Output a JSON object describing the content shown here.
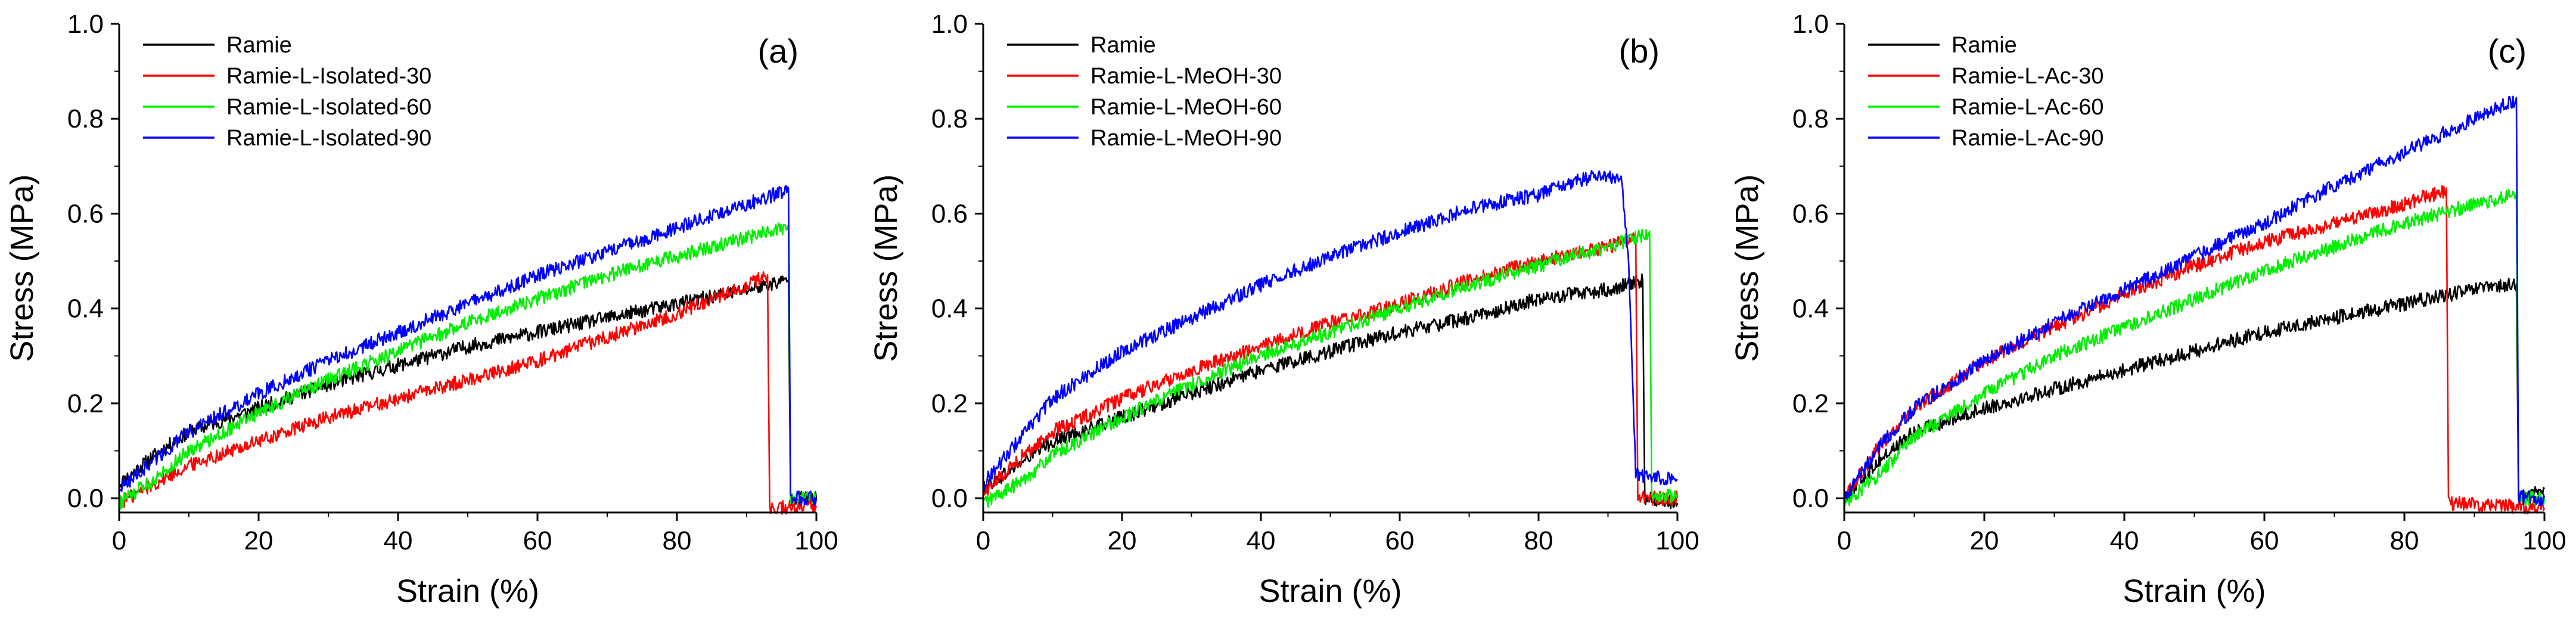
{
  "chart_data": [
    {
      "type": "line",
      "panel_label": "(a)",
      "xlabel": "Strain (%)",
      "ylabel": "Stress (MPa)",
      "xlim": [
        0,
        100
      ],
      "ylim": [
        -0.03,
        1.0
      ],
      "xticks": [
        "0",
        "20",
        "40",
        "60",
        "80",
        "100"
      ],
      "yticks": [
        "0.0",
        "0.2",
        "0.4",
        "0.6",
        "0.8",
        "1.0"
      ],
      "legend_position": "top-left",
      "series": [
        {
          "name": "Ramie",
          "color": "#000000",
          "points": [
            [
              0,
              0.03
            ],
            [
              5,
              0.09
            ],
            [
              10,
              0.14
            ],
            [
              20,
              0.19
            ],
            [
              30,
              0.24
            ],
            [
              40,
              0.28
            ],
            [
              50,
              0.32
            ],
            [
              60,
              0.35
            ],
            [
              70,
              0.38
            ],
            [
              80,
              0.41
            ],
            [
              90,
              0.44
            ],
            [
              96,
              0.46
            ],
            [
              96.3,
              0.0
            ],
            [
              100,
              0.0
            ]
          ]
        },
        {
          "name": "Ramie-L-Isolated-30",
          "color": "#ff0000",
          "points": [
            [
              0,
              -0.01
            ],
            [
              5,
              0.03
            ],
            [
              10,
              0.07
            ],
            [
              20,
              0.12
            ],
            [
              30,
              0.17
            ],
            [
              40,
              0.21
            ],
            [
              50,
              0.25
            ],
            [
              60,
              0.29
            ],
            [
              70,
              0.34
            ],
            [
              80,
              0.39
            ],
            [
              90,
              0.45
            ],
            [
              93,
              0.47
            ],
            [
              93.3,
              -0.02
            ],
            [
              100,
              -0.02
            ]
          ]
        },
        {
          "name": "Ramie-L-Isolated-60",
          "color": "#00ee00",
          "points": [
            [
              0,
              -0.01
            ],
            [
              5,
              0.04
            ],
            [
              10,
              0.1
            ],
            [
              20,
              0.18
            ],
            [
              30,
              0.25
            ],
            [
              40,
              0.31
            ],
            [
              50,
              0.37
            ],
            [
              60,
              0.42
            ],
            [
              70,
              0.47
            ],
            [
              80,
              0.51
            ],
            [
              90,
              0.55
            ],
            [
              96,
              0.57
            ],
            [
              96.3,
              0.0
            ],
            [
              100,
              0.0
            ]
          ]
        },
        {
          "name": "Ramie-L-Isolated-90",
          "color": "#0000ff",
          "points": [
            [
              0,
              0.02
            ],
            [
              5,
              0.08
            ],
            [
              10,
              0.14
            ],
            [
              20,
              0.22
            ],
            [
              30,
              0.29
            ],
            [
              40,
              0.35
            ],
            [
              50,
              0.41
            ],
            [
              60,
              0.47
            ],
            [
              70,
              0.52
            ],
            [
              80,
              0.57
            ],
            [
              90,
              0.62
            ],
            [
              96,
              0.65
            ],
            [
              96.3,
              0.0
            ],
            [
              100,
              0.0
            ]
          ]
        }
      ]
    },
    {
      "type": "line",
      "panel_label": "(b)",
      "xlabel": "Strain (%)",
      "ylabel": "Stress (MPa)",
      "xlim": [
        0,
        100
      ],
      "ylim": [
        -0.03,
        1.0
      ],
      "xticks": [
        "0",
        "20",
        "40",
        "60",
        "80",
        "100"
      ],
      "yticks": [
        "0.0",
        "0.2",
        "0.4",
        "0.6",
        "0.8",
        "1.0"
      ],
      "legend_position": "top-left",
      "series": [
        {
          "name": "Ramie",
          "color": "#000000",
          "points": [
            [
              0,
              0.02
            ],
            [
              5,
              0.07
            ],
            [
              10,
              0.12
            ],
            [
              20,
              0.17
            ],
            [
              30,
              0.22
            ],
            [
              40,
              0.27
            ],
            [
              50,
              0.31
            ],
            [
              60,
              0.35
            ],
            [
              70,
              0.38
            ],
            [
              80,
              0.42
            ],
            [
              90,
              0.44
            ],
            [
              95,
              0.46
            ],
            [
              95.3,
              0.0
            ],
            [
              100,
              -0.01
            ]
          ]
        },
        {
          "name": "Ramie-L-MeOH-30",
          "color": "#ff0000",
          "points": [
            [
              0,
              0.01
            ],
            [
              5,
              0.08
            ],
            [
              10,
              0.14
            ],
            [
              20,
              0.21
            ],
            [
              30,
              0.27
            ],
            [
              40,
              0.32
            ],
            [
              50,
              0.37
            ],
            [
              60,
              0.41
            ],
            [
              70,
              0.46
            ],
            [
              80,
              0.5
            ],
            [
              90,
              0.53
            ],
            [
              94,
              0.55
            ],
            [
              94.3,
              0.0
            ],
            [
              100,
              0.0
            ]
          ]
        },
        {
          "name": "Ramie-L-MeOH-60",
          "color": "#00ee00",
          "points": [
            [
              0,
              -0.01
            ],
            [
              5,
              0.03
            ],
            [
              10,
              0.09
            ],
            [
              20,
              0.17
            ],
            [
              30,
              0.24
            ],
            [
              40,
              0.3
            ],
            [
              50,
              0.35
            ],
            [
              60,
              0.4
            ],
            [
              70,
              0.45
            ],
            [
              80,
              0.49
            ],
            [
              90,
              0.53
            ],
            [
              96,
              0.56
            ],
            [
              96.3,
              0.01
            ],
            [
              100,
              0.0
            ]
          ]
        },
        {
          "name": "Ramie-L-MeOH-90",
          "color": "#0000ff",
          "points": [
            [
              0,
              0.03
            ],
            [
              5,
              0.12
            ],
            [
              10,
              0.21
            ],
            [
              20,
              0.31
            ],
            [
              30,
              0.38
            ],
            [
              40,
              0.45
            ],
            [
              50,
              0.51
            ],
            [
              60,
              0.56
            ],
            [
              70,
              0.61
            ],
            [
              80,
              0.64
            ],
            [
              88,
              0.68
            ],
            [
              92,
              0.67
            ],
            [
              93,
              0.5
            ],
            [
              94,
              0.05
            ],
            [
              100,
              0.04
            ]
          ]
        }
      ]
    },
    {
      "type": "line",
      "panel_label": "(c)",
      "xlabel": "Strain (%)",
      "ylabel": "Stress (MPa)",
      "xlim": [
        0,
        100
      ],
      "ylim": [
        -0.03,
        1.0
      ],
      "xticks": [
        "0",
        "20",
        "40",
        "60",
        "80",
        "100"
      ],
      "yticks": [
        "0.0",
        "0.2",
        "0.4",
        "0.6",
        "0.8",
        "1.0"
      ],
      "legend_position": "top-left",
      "series": [
        {
          "name": "Ramie",
          "color": "#000000",
          "points": [
            [
              0,
              0.0
            ],
            [
              5,
              0.08
            ],
            [
              10,
              0.14
            ],
            [
              20,
              0.19
            ],
            [
              30,
              0.23
            ],
            [
              40,
              0.27
            ],
            [
              50,
              0.31
            ],
            [
              60,
              0.35
            ],
            [
              70,
              0.38
            ],
            [
              80,
              0.41
            ],
            [
              90,
              0.44
            ],
            [
              96,
              0.45
            ],
            [
              96.3,
              0.0
            ],
            [
              100,
              0.02
            ]
          ]
        },
        {
          "name": "Ramie-L-Ac-30",
          "color": "#ff0000",
          "points": [
            [
              0,
              0.0
            ],
            [
              5,
              0.11
            ],
            [
              10,
              0.19
            ],
            [
              20,
              0.29
            ],
            [
              30,
              0.36
            ],
            [
              40,
              0.43
            ],
            [
              50,
              0.49
            ],
            [
              60,
              0.54
            ],
            [
              70,
              0.58
            ],
            [
              80,
              0.62
            ],
            [
              86,
              0.65
            ],
            [
              86.3,
              -0.01
            ],
            [
              100,
              -0.02
            ]
          ]
        },
        {
          "name": "Ramie-L-Ac-60",
          "color": "#00ee00",
          "points": [
            [
              0,
              -0.01
            ],
            [
              5,
              0.05
            ],
            [
              10,
              0.13
            ],
            [
              20,
              0.22
            ],
            [
              30,
              0.3
            ],
            [
              40,
              0.36
            ],
            [
              50,
              0.42
            ],
            [
              60,
              0.48
            ],
            [
              70,
              0.53
            ],
            [
              80,
              0.58
            ],
            [
              90,
              0.62
            ],
            [
              96,
              0.64
            ],
            [
              96.3,
              0.0
            ],
            [
              100,
              0.0
            ]
          ]
        },
        {
          "name": "Ramie-L-Ac-90",
          "color": "#0000ff",
          "points": [
            [
              0,
              0.0
            ],
            [
              5,
              0.11
            ],
            [
              10,
              0.19
            ],
            [
              20,
              0.29
            ],
            [
              30,
              0.37
            ],
            [
              40,
              0.44
            ],
            [
              50,
              0.51
            ],
            [
              60,
              0.58
            ],
            [
              70,
              0.66
            ],
            [
              80,
              0.73
            ],
            [
              90,
              0.8
            ],
            [
              96,
              0.84
            ],
            [
              96.3,
              0.0
            ],
            [
              100,
              0.0
            ]
          ]
        }
      ]
    }
  ]
}
